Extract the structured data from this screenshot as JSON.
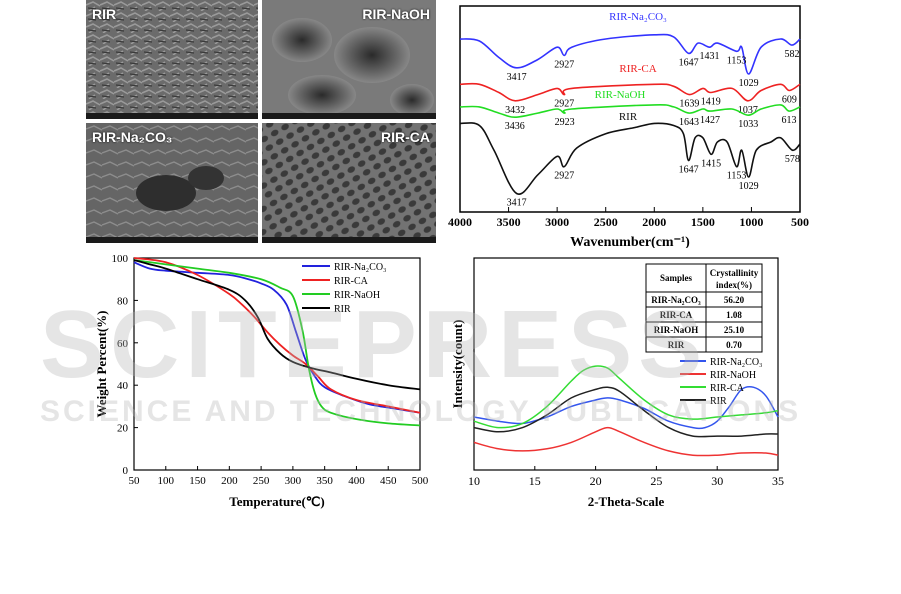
{
  "sem": {
    "panels": [
      {
        "label": "RIR",
        "tone": "#6b6b6b"
      },
      {
        "label": "RIR-NaOH",
        "tone": "#7a7a7a"
      },
      {
        "label": "RIR-Na₂CO₃",
        "tone": "#656565"
      },
      {
        "label": "RIR-CA",
        "tone": "#737373"
      }
    ]
  },
  "watermark": {
    "main": "SCITEPRESS",
    "sub": "SCIENCE AND TECHNOLOGY PUBLICATIONS"
  },
  "chart_data": [
    {
      "type": "line",
      "id": "ftir",
      "xlabel": "Wavenumber(cm⁻¹)",
      "xlim": [
        4000,
        500
      ],
      "x_ticks": [
        4000,
        3500,
        3000,
        2500,
        2000,
        1500,
        1000,
        500
      ],
      "series": [
        {
          "name": "RIR-Na₂CO₃",
          "color": "#3333ff",
          "points": [
            [
              4000,
              0.84
            ],
            [
              3800,
              0.83
            ],
            [
              3600,
              0.75
            ],
            [
              3417,
              0.7
            ],
            [
              3200,
              0.74
            ],
            [
              3000,
              0.8
            ],
            [
              2927,
              0.76
            ],
            [
              2850,
              0.8
            ],
            [
              2500,
              0.84
            ],
            [
              2000,
              0.86
            ],
            [
              1800,
              0.85
            ],
            [
              1647,
              0.77
            ],
            [
              1550,
              0.82
            ],
            [
              1431,
              0.8
            ],
            [
              1350,
              0.82
            ],
            [
              1153,
              0.78
            ],
            [
              1100,
              0.8
            ],
            [
              1029,
              0.67
            ],
            [
              900,
              0.8
            ],
            [
              700,
              0.84
            ],
            [
              582,
              0.81
            ],
            [
              500,
              0.84
            ]
          ],
          "peaks": [
            {
              "x": 3417,
              "label": "3417"
            },
            {
              "x": 2927,
              "label": "2927"
            },
            {
              "x": 1647,
              "label": "1647"
            },
            {
              "x": 1431,
              "label": "1431"
            },
            {
              "x": 1153,
              "label": "1153"
            },
            {
              "x": 1029,
              "label": "1029"
            },
            {
              "x": 582,
              "label": "582"
            }
          ]
        },
        {
          "name": "RIR-CA",
          "color": "#ee2222",
          "points": [
            [
              4000,
              0.62
            ],
            [
              3800,
              0.62
            ],
            [
              3600,
              0.58
            ],
            [
              3432,
              0.54
            ],
            [
              3200,
              0.57
            ],
            [
              3000,
              0.6
            ],
            [
              2927,
              0.57
            ],
            [
              2850,
              0.6
            ],
            [
              2000,
              0.62
            ],
            [
              1800,
              0.61
            ],
            [
              1639,
              0.57
            ],
            [
              1500,
              0.6
            ],
            [
              1419,
              0.58
            ],
            [
              1200,
              0.6
            ],
            [
              1037,
              0.54
            ],
            [
              900,
              0.59
            ],
            [
              700,
              0.62
            ],
            [
              609,
              0.59
            ],
            [
              500,
              0.62
            ]
          ],
          "peaks": [
            {
              "x": 3432,
              "label": "3432"
            },
            {
              "x": 2927,
              "label": "2927"
            },
            {
              "x": 1639,
              "label": "1639"
            },
            {
              "x": 1419,
              "label": "1419"
            },
            {
              "x": 1037,
              "label": "1037"
            },
            {
              "x": 609,
              "label": "609"
            }
          ]
        },
        {
          "name": "RIR-NaOH",
          "color": "#22dd22",
          "points": [
            [
              4000,
              0.51
            ],
            [
              3800,
              0.51
            ],
            [
              3600,
              0.48
            ],
            [
              3436,
              0.46
            ],
            [
              3200,
              0.48
            ],
            [
              3000,
              0.5
            ],
            [
              2923,
              0.48
            ],
            [
              2850,
              0.5
            ],
            [
              2000,
              0.52
            ],
            [
              1800,
              0.51
            ],
            [
              1643,
              0.48
            ],
            [
              1500,
              0.5
            ],
            [
              1427,
              0.49
            ],
            [
              1200,
              0.5
            ],
            [
              1033,
              0.47
            ],
            [
              900,
              0.5
            ],
            [
              700,
              0.52
            ],
            [
              613,
              0.49
            ],
            [
              500,
              0.51
            ]
          ],
          "peaks": [
            {
              "x": 3436,
              "label": "3436"
            },
            {
              "x": 2923,
              "label": "2923"
            },
            {
              "x": 1643,
              "label": "1643"
            },
            {
              "x": 1427,
              "label": "1427"
            },
            {
              "x": 1033,
              "label": "1033"
            },
            {
              "x": 613,
              "label": "613"
            }
          ]
        },
        {
          "name": "RIR",
          "color": "#111111",
          "points": [
            [
              4000,
              0.43
            ],
            [
              3800,
              0.42
            ],
            [
              3650,
              0.3
            ],
            [
              3417,
              0.09
            ],
            [
              3200,
              0.18
            ],
            [
              3000,
              0.27
            ],
            [
              2927,
              0.22
            ],
            [
              2800,
              0.31
            ],
            [
              2500,
              0.38
            ],
            [
              2200,
              0.41
            ],
            [
              2000,
              0.43
            ],
            [
              1800,
              0.42
            ],
            [
              1700,
              0.38
            ],
            [
              1647,
              0.25
            ],
            [
              1580,
              0.36
            ],
            [
              1500,
              0.36
            ],
            [
              1415,
              0.28
            ],
            [
              1350,
              0.34
            ],
            [
              1250,
              0.34
            ],
            [
              1153,
              0.22
            ],
            [
              1100,
              0.3
            ],
            [
              1029,
              0.17
            ],
            [
              950,
              0.3
            ],
            [
              800,
              0.34
            ],
            [
              700,
              0.36
            ],
            [
              578,
              0.3
            ],
            [
              500,
              0.33
            ]
          ],
          "peaks": [
            {
              "x": 3417,
              "label": "3417"
            },
            {
              "x": 2927,
              "label": "2927"
            },
            {
              "x": 1647,
              "label": "1647"
            },
            {
              "x": 1415,
              "label": "1415"
            },
            {
              "x": 1153,
              "label": "1153"
            },
            {
              "x": 1029,
              "label": "1029"
            },
            {
              "x": 578,
              "label": "578"
            }
          ]
        }
      ]
    },
    {
      "type": "line",
      "id": "tga",
      "xlabel": "Temperature(℃)",
      "ylabel": "Weight Percent(%)",
      "xlim": [
        50,
        500
      ],
      "ylim": [
        0,
        100
      ],
      "x_ticks": [
        50,
        100,
        150,
        200,
        250,
        300,
        350,
        400,
        450,
        500
      ],
      "y_ticks": [
        0,
        20,
        40,
        60,
        80,
        100
      ],
      "legend": "top-right",
      "series": [
        {
          "name": "RIR-Na₂CO₃",
          "color": "#2222dd",
          "x": [
            50,
            75,
            100,
            150,
            200,
            230,
            250,
            270,
            290,
            305,
            320,
            335,
            350,
            380,
            420,
            460,
            500
          ],
          "y": [
            98,
            95,
            94,
            93,
            92,
            90,
            88,
            85,
            78,
            65,
            52,
            44,
            39,
            35,
            31,
            29,
            27
          ]
        },
        {
          "name": "RIR-CA",
          "color": "#ee2222",
          "x": [
            50,
            100,
            150,
            200,
            220,
            240,
            260,
            280,
            300,
            320,
            340,
            360,
            400,
            450,
            500
          ],
          "y": [
            100,
            98,
            92,
            83,
            78,
            72,
            65,
            59,
            54,
            50,
            44,
            38,
            33,
            30,
            27
          ]
        },
        {
          "name": "RIR-NaOH",
          "color": "#22cc22",
          "x": [
            50,
            100,
            150,
            200,
            250,
            280,
            300,
            315,
            325,
            335,
            345,
            360,
            400,
            450,
            500
          ],
          "y": [
            99,
            97,
            95,
            93,
            90,
            86,
            82,
            66,
            48,
            36,
            30,
            27,
            24,
            22,
            21
          ]
        },
        {
          "name": "RIR",
          "color": "#000000",
          "x": [
            50,
            75,
            100,
            150,
            200,
            225,
            245,
            260,
            280,
            300,
            330,
            360,
            400,
            450,
            500
          ],
          "y": [
            99,
            97,
            95,
            90,
            85,
            80,
            72,
            62,
            55,
            51,
            48,
            46,
            43,
            40,
            38
          ]
        }
      ]
    },
    {
      "type": "line",
      "id": "xrd",
      "xlabel": "2-Theta-Scale",
      "ylabel": "Intensity(count)",
      "xlim": [
        10,
        35
      ],
      "ylim": [
        0,
        10
      ],
      "x_ticks": [
        10,
        15,
        20,
        25,
        30,
        35
      ],
      "legend": "top-right",
      "series": [
        {
          "name": "RIR-Na₂CO₃",
          "color": "#3355ee",
          "x": [
            10,
            12,
            14,
            16,
            18,
            20,
            21,
            22,
            24,
            26,
            28,
            29,
            30,
            31,
            32,
            33,
            34,
            35
          ],
          "y": [
            2.5,
            2.3,
            2.2,
            2.5,
            3.0,
            3.3,
            3.4,
            3.3,
            2.9,
            2.3,
            2.0,
            2.0,
            2.3,
            3.0,
            3.8,
            3.9,
            3.5,
            2.5
          ]
        },
        {
          "name": "RIR-NaOH",
          "color": "#ee3333",
          "x": [
            10,
            12,
            14,
            16,
            18,
            20,
            21,
            22,
            24,
            26,
            28,
            30,
            32,
            34,
            35
          ],
          "y": [
            1.3,
            1.0,
            0.9,
            1.0,
            1.3,
            1.8,
            2.0,
            1.8,
            1.3,
            0.9,
            0.7,
            0.7,
            0.8,
            0.8,
            0.7
          ]
        },
        {
          "name": "RIR-CA",
          "color": "#33dd33",
          "x": [
            10,
            12,
            14,
            16,
            18,
            19,
            20,
            21,
            22,
            24,
            26,
            28,
            30,
            32,
            34,
            35
          ],
          "y": [
            2.3,
            2.0,
            2.2,
            3.0,
            4.2,
            4.7,
            4.9,
            4.8,
            4.3,
            3.3,
            2.6,
            2.4,
            2.5,
            2.6,
            2.7,
            2.8
          ]
        },
        {
          "name": "RIR",
          "color": "#222222",
          "x": [
            10,
            12,
            14,
            16,
            18,
            20,
            21,
            22,
            24,
            26,
            28,
            30,
            32,
            34,
            35
          ],
          "y": [
            2.0,
            1.8,
            2.0,
            2.6,
            3.4,
            3.8,
            3.9,
            3.7,
            2.8,
            2.0,
            1.6,
            1.6,
            1.6,
            1.7,
            1.7
          ]
        }
      ],
      "table": {
        "headers": [
          "Samples",
          "Crystallinity index(%)"
        ],
        "rows": [
          [
            "RIR-Na₂CO₃",
            "56.20"
          ],
          [
            "RIR-CA",
            "1.08"
          ],
          [
            "RIR-NaOH",
            "25.10"
          ],
          [
            "RIR",
            "0.70"
          ]
        ]
      }
    }
  ]
}
